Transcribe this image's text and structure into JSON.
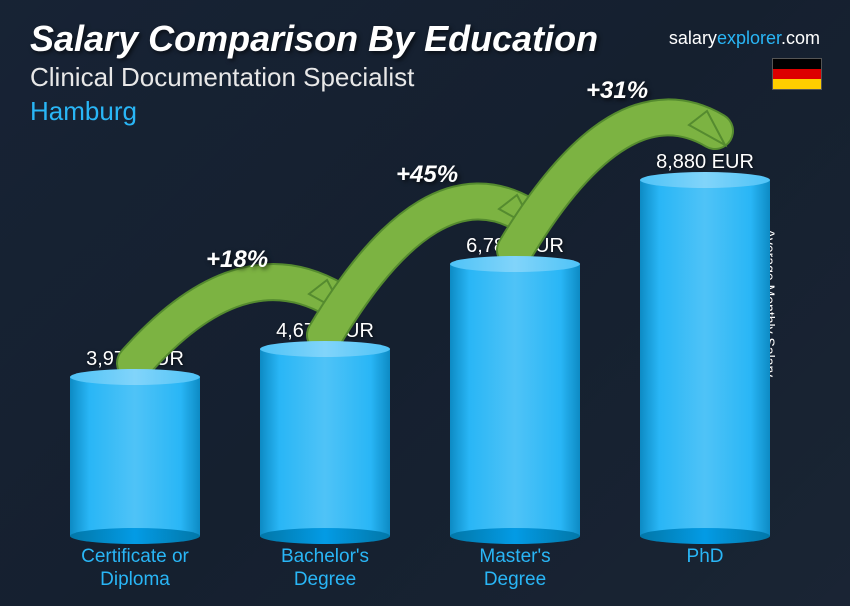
{
  "header": {
    "title": "Salary Comparison By Education",
    "subtitle": "Clinical Documentation Specialist",
    "location": "Hamburg",
    "brand_prefix": "salary",
    "brand_accent": "explorer",
    "brand_suffix": ".com",
    "flag_colors": [
      "#000000",
      "#dd0000",
      "#ffce00"
    ]
  },
  "axis": {
    "ylabel": "Average Monthly Salary"
  },
  "chart": {
    "type": "bar",
    "currency": "EUR",
    "max_value": 8880,
    "bar_colors": {
      "top": "#81d4fa",
      "body_light": "#4fc3f7",
      "body_mid": "#29b6f6",
      "body_dark": "#0d8bc4",
      "bottom": "#039be5"
    },
    "categories": [
      {
        "label": "Certificate or Diploma",
        "value": 3970,
        "value_label": "3,970 EUR"
      },
      {
        "label": "Bachelor's Degree",
        "value": 4670,
        "value_label": "4,670 EUR"
      },
      {
        "label": "Master's Degree",
        "value": 6780,
        "value_label": "6,780 EUR"
      },
      {
        "label": "PhD",
        "value": 8880,
        "value_label": "8,880 EUR"
      }
    ],
    "arcs": [
      {
        "from": 0,
        "to": 1,
        "pct": "+18%",
        "color_fill": "#7cb342",
        "color_stroke": "#558b2f"
      },
      {
        "from": 1,
        "to": 2,
        "pct": "+45%",
        "color_fill": "#7cb342",
        "color_stroke": "#558b2f"
      },
      {
        "from": 2,
        "to": 3,
        "pct": "+31%",
        "color_fill": "#7cb342",
        "color_stroke": "#558b2f"
      }
    ],
    "xlabel_color": "#29b6f6",
    "value_color": "#ffffff",
    "background": "rgba(20,30,45,0.85)"
  }
}
